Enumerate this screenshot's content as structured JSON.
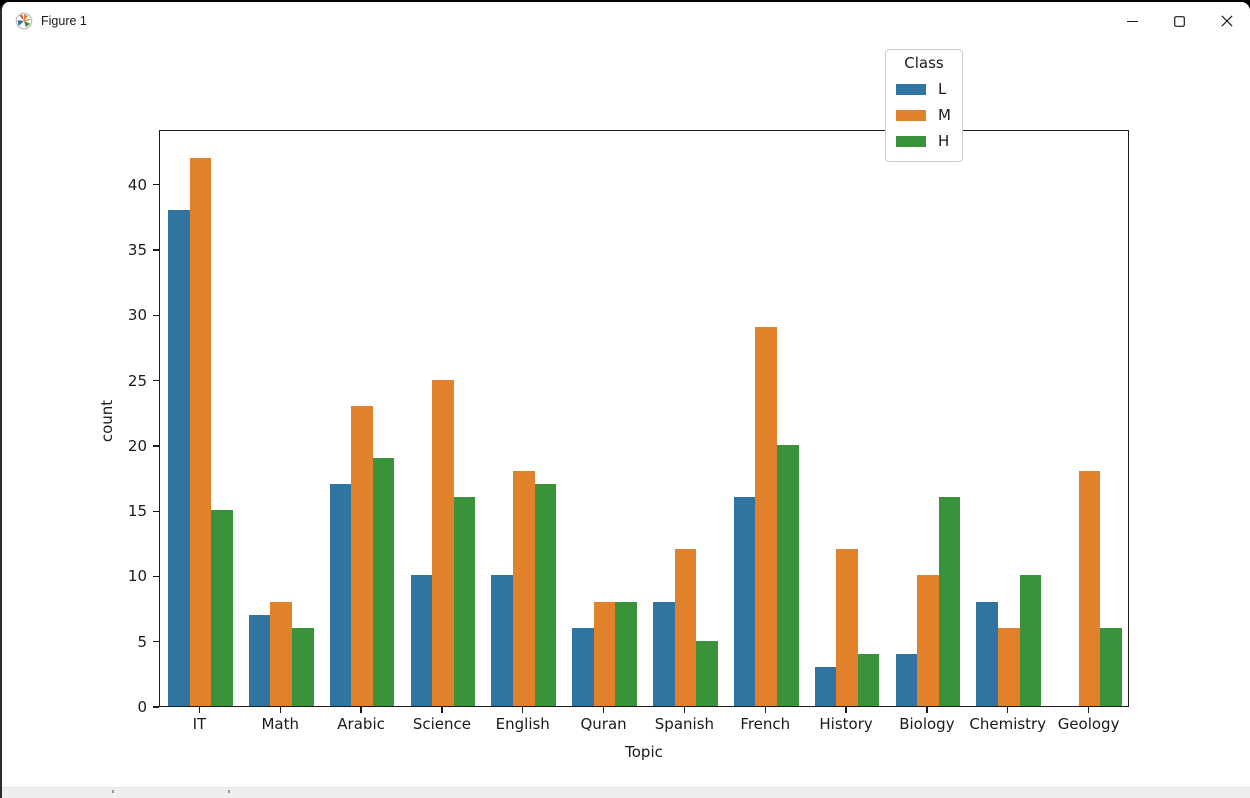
{
  "window": {
    "title": "Figure 1",
    "controls": {
      "minimize": "minimize",
      "maximize": "maximize",
      "close": "close"
    }
  },
  "chart_data": {
    "type": "bar",
    "title": "",
    "xlabel": "Topic",
    "ylabel": "count",
    "categories": [
      "IT",
      "Math",
      "Arabic",
      "Science",
      "English",
      "Quran",
      "Spanish",
      "French",
      "History",
      "Biology",
      "Chemistry",
      "Geology"
    ],
    "series": [
      {
        "name": "L",
        "color": "#3274a1",
        "values": [
          38,
          7,
          17,
          10,
          10,
          6,
          8,
          16,
          3,
          4,
          8,
          0
        ]
      },
      {
        "name": "M",
        "color": "#e1812c",
        "values": [
          42,
          8,
          23,
          25,
          18,
          8,
          12,
          29,
          12,
          10,
          6,
          18
        ]
      },
      {
        "name": "H",
        "color": "#3a923a",
        "values": [
          15,
          6,
          19,
          16,
          17,
          8,
          5,
          20,
          4,
          16,
          10,
          6
        ]
      }
    ],
    "legend": {
      "title": "Class",
      "position": "upper right"
    },
    "ylim": [
      0,
      44.2
    ],
    "yticks": [
      0,
      5,
      10,
      15,
      20,
      25,
      30,
      35,
      40
    ],
    "grid": false,
    "bar_group_fraction": 0.8
  }
}
